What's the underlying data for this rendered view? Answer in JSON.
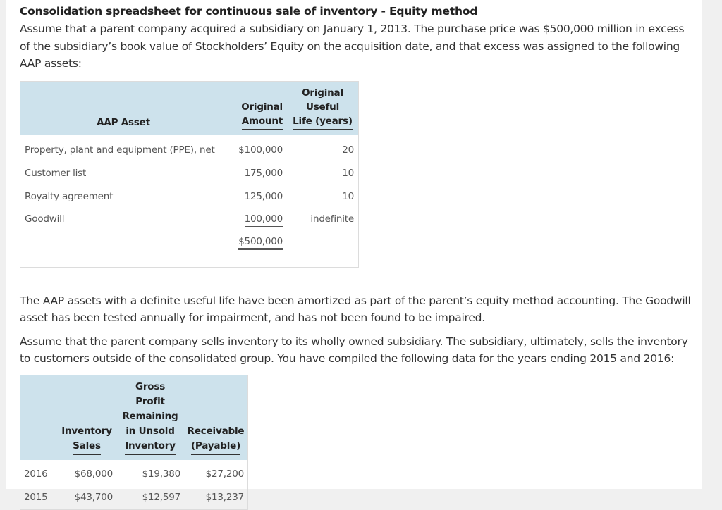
{
  "title": "Consolidation spreadsheet for continuous sale of inventory - Equity method",
  "intro": "Assume that a parent company acquired a subsidiary on January 1, 2013. The purchase price was $500,000 million in excess of the subsidiary’s book value of Stockholders’ Equity on the acquisition date, and that excess was assigned to the following AAP assets:",
  "aap_table": {
    "headers": {
      "asset": "AAP Asset",
      "amount_line1": "Original",
      "amount_line2": "Amount",
      "life_line1": "Original Useful",
      "life_line2": "Life (years)"
    },
    "rows": [
      {
        "asset": "Property, plant and equipment (PPE), net",
        "amount": "$100,000",
        "life": "20"
      },
      {
        "asset": "Customer list",
        "amount": "175,000",
        "life": "10"
      },
      {
        "asset": "Royalty agreement",
        "amount": "125,000",
        "life": "10"
      },
      {
        "asset": "Goodwill",
        "amount": "100,000",
        "life": "indefinite"
      }
    ],
    "total": "$500,000"
  },
  "paragraph2": "The AAP assets with a definite useful life have been amortized as part of the parent’s equity method accounting. The Goodwill asset has been tested annually for impairment, and has not been found to be impaired.",
  "paragraph3": "Assume that the parent company sells inventory to its wholly owned subsidiary. The subsidiary, ultimately, sells the inventory to customers outside of the consolidated group. You have compiled the following data for the years ending 2015 and 2016:",
  "inventory_table": {
    "headers": {
      "sales_line1": "Inventory",
      "sales_line2": "Sales",
      "gp_line1": "Gross Profit",
      "gp_line2": "Remaining",
      "gp_line3": "in Unsold",
      "gp_line4": "Inventory",
      "rec_line1": "Receivable",
      "rec_line2": "(Payable)"
    },
    "rows": [
      {
        "year": "2016",
        "sales": "$68,000",
        "gross_profit": "$19,380",
        "receivable": "$27,200"
      },
      {
        "year": "2015",
        "sales": "$43,700",
        "gross_profit": "$12,597",
        "receivable": "$13,237"
      }
    ]
  }
}
